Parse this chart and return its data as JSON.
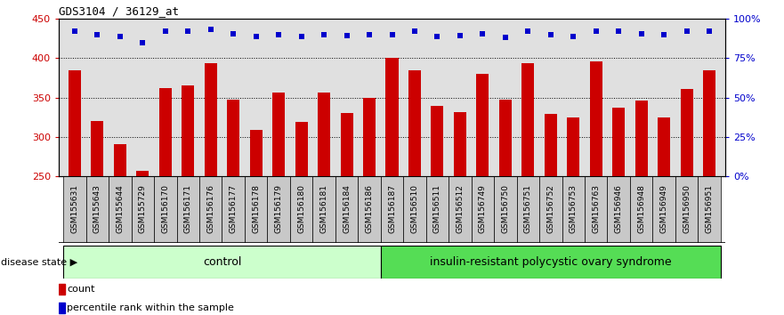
{
  "title": "GDS3104 / 36129_at",
  "samples": [
    "GSM155631",
    "GSM155643",
    "GSM155644",
    "GSM155729",
    "GSM156170",
    "GSM156171",
    "GSM156176",
    "GSM156177",
    "GSM156178",
    "GSM156179",
    "GSM156180",
    "GSM156181",
    "GSM156184",
    "GSM156186",
    "GSM156187",
    "GSM156510",
    "GSM156511",
    "GSM156512",
    "GSM156749",
    "GSM156750",
    "GSM156751",
    "GSM156752",
    "GSM156753",
    "GSM156763",
    "GSM156946",
    "GSM156948",
    "GSM156949",
    "GSM156950",
    "GSM156951"
  ],
  "bar_values": [
    385,
    320,
    291,
    257,
    362,
    366,
    394,
    347,
    309,
    357,
    319,
    357,
    330,
    350,
    401,
    385,
    340,
    332,
    380,
    347,
    394,
    329,
    325,
    396,
    337,
    346,
    325,
    361,
    385
  ],
  "dot_values": [
    435,
    430,
    428,
    420,
    434,
    435,
    437,
    431,
    428,
    430,
    428,
    430,
    429,
    430,
    430,
    435,
    428,
    429,
    431,
    427,
    435,
    430,
    428,
    434,
    435,
    431,
    430,
    434,
    435
  ],
  "control_count": 14,
  "disease_count": 15,
  "control_label": "control",
  "disease_label": "insulin-resistant polycystic ovary syndrome",
  "disease_state_label": "disease state",
  "ylim_left": [
    250,
    450
  ],
  "ylim_right": [
    0,
    100
  ],
  "yticks_left": [
    250,
    300,
    350,
    400,
    450
  ],
  "yticks_right": [
    0,
    25,
    50,
    75,
    100
  ],
  "ytick_labels_right": [
    "0%",
    "25%",
    "50%",
    "75%",
    "100%"
  ],
  "bar_color": "#cc0000",
  "dot_color": "#0000cc",
  "control_bg": "#ccffcc",
  "disease_bg": "#55dd55",
  "tick_label_color_left": "#cc0000",
  "tick_label_color_right": "#0000cc",
  "legend_count_label": "count",
  "legend_pct_label": "percentile rank within the sample",
  "plot_bg": "#e0e0e0",
  "fig_bg": "#ffffff",
  "xlabel_bg": "#c8c8c8",
  "gridline_color": "#000000",
  "bar_width": 0.55
}
